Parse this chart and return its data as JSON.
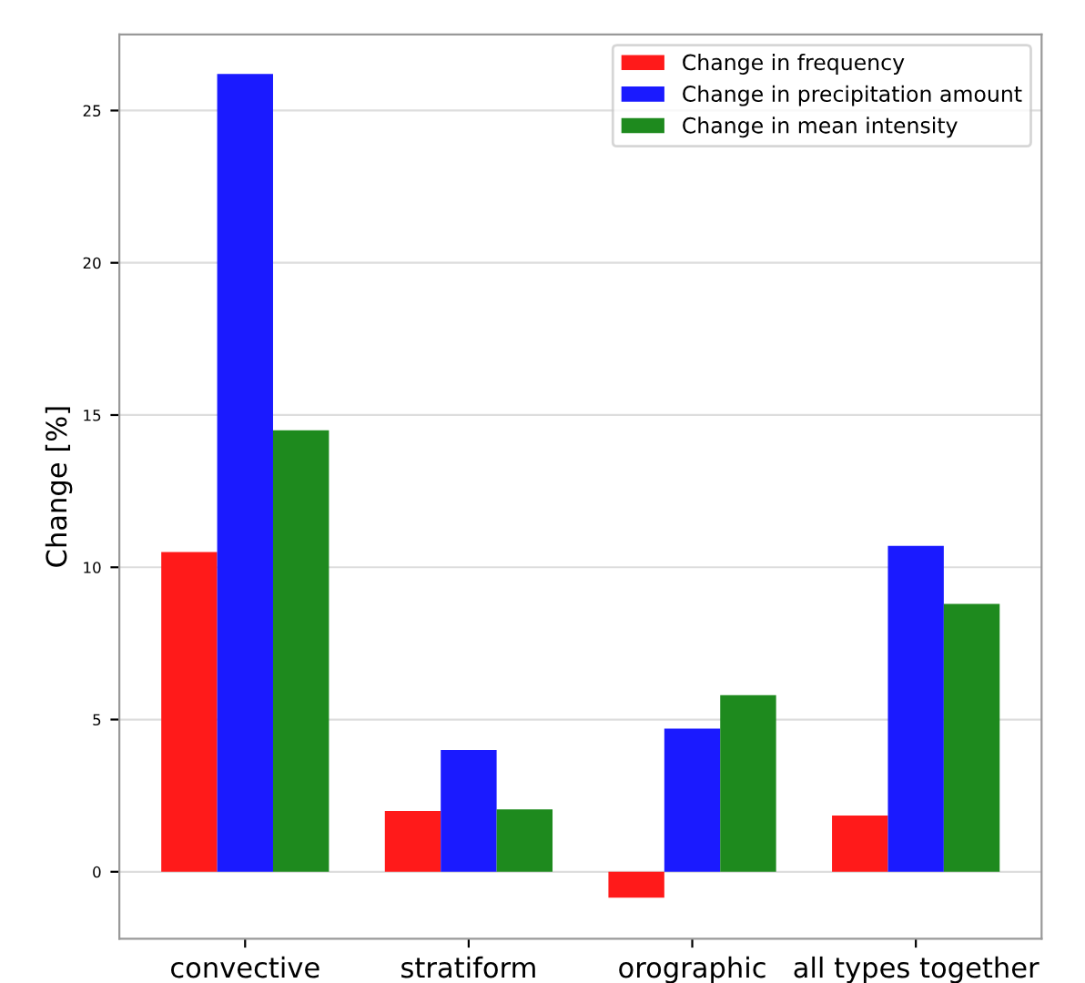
{
  "chart_data": {
    "type": "bar",
    "ylabel": "Change [%]",
    "categories": [
      "convective",
      "stratiform",
      "orographic",
      "all types together"
    ],
    "series": [
      {
        "name": "Change in frequency",
        "color": "#ff1a1a",
        "values": [
          10.5,
          2.0,
          -0.85,
          1.85
        ]
      },
      {
        "name": "Change in precipitation amount",
        "color": "#1a1aff",
        "values": [
          26.2,
          4.0,
          4.7,
          10.7
        ]
      },
      {
        "name": "Change in mean intensity",
        "color": "#1e8a1e",
        "values": [
          14.5,
          2.05,
          5.8,
          8.8
        ]
      }
    ],
    "ylim": [
      -2.2,
      27.5
    ],
    "yticks": [
      0,
      5,
      10,
      15,
      20,
      25
    ],
    "grid": "y",
    "legend": "upper right"
  }
}
